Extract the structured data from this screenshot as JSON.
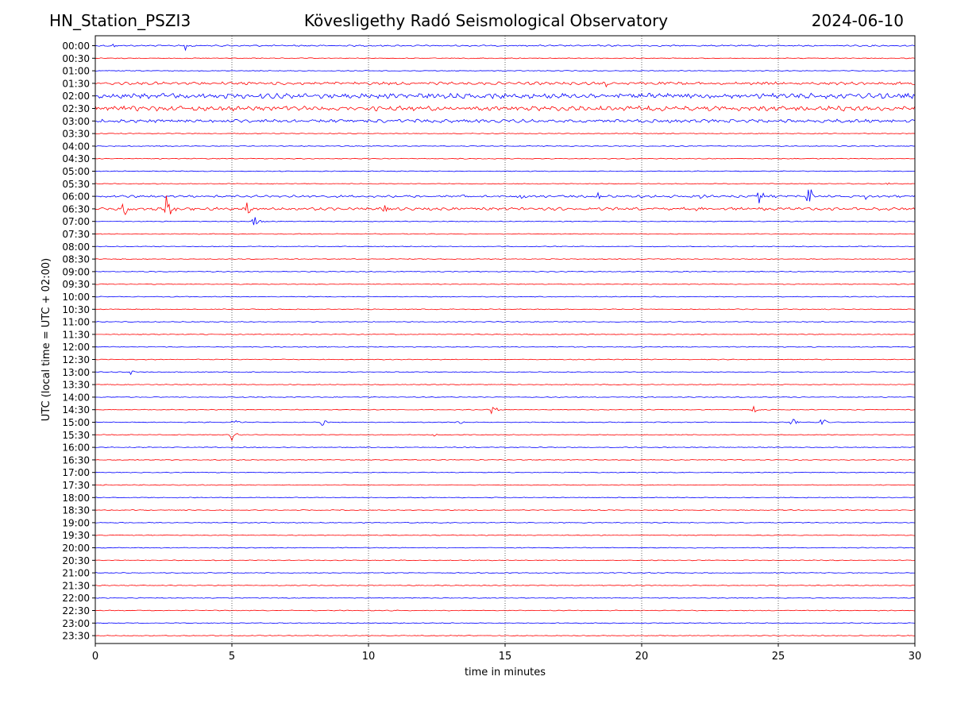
{
  "header": {
    "station": "HN_Station_PSZI3",
    "observatory": "Kövesligethy Radó Seismological Observatory",
    "date": "2024-06-10"
  },
  "chart_data": {
    "type": "line",
    "xlabel": "time in minutes",
    "ylabel": "UTC (local time = UTC + 02:00)",
    "xlim": [
      0,
      30
    ],
    "xticks": [
      0,
      5,
      10,
      15,
      20,
      25,
      30
    ],
    "rows": [
      "00:00",
      "00:30",
      "01:00",
      "01:30",
      "02:00",
      "02:30",
      "03:00",
      "03:30",
      "04:00",
      "04:30",
      "05:00",
      "05:30",
      "06:00",
      "06:30",
      "07:00",
      "07:30",
      "08:00",
      "08:30",
      "09:00",
      "09:30",
      "10:00",
      "10:30",
      "11:00",
      "11:30",
      "12:00",
      "12:30",
      "13:00",
      "13:30",
      "14:00",
      "14:30",
      "15:00",
      "15:30",
      "16:00",
      "16:30",
      "17:00",
      "17:30",
      "18:00",
      "18:30",
      "19:00",
      "19:30",
      "20:00",
      "20:30",
      "21:00",
      "21:30",
      "22:00",
      "22:30",
      "23:00",
      "23:30"
    ],
    "trace_colors": [
      "#0000ff",
      "#ff0000"
    ],
    "grid": "vertical dotted at major x ticks",
    "noise_amplitude": {
      "00:00": 0.6,
      "01:30": 1.2,
      "02:00": 2.2,
      "02:30": 2.0,
      "03:00": 1.4,
      "06:00": 1.0,
      "06:30": 1.2
    },
    "events": [
      {
        "row": "00:00",
        "t": 0.6,
        "amp": 3
      },
      {
        "row": "00:00",
        "t": 3.3,
        "amp": 6
      },
      {
        "row": "01:30",
        "t": 18.7,
        "amp": 4
      },
      {
        "row": "05:30",
        "t": 29.0,
        "amp": 2
      },
      {
        "row": "06:00",
        "t": 13.4,
        "amp": 4
      },
      {
        "row": "06:00",
        "t": 15.6,
        "amp": 5
      },
      {
        "row": "06:00",
        "t": 18.4,
        "amp": 6
      },
      {
        "row": "06:00",
        "t": 22.1,
        "amp": 5
      },
      {
        "row": "06:00",
        "t": 24.3,
        "amp": 14
      },
      {
        "row": "06:00",
        "t": 26.1,
        "amp": 16
      },
      {
        "row": "06:00",
        "t": 28.2,
        "amp": 7
      },
      {
        "row": "06:30",
        "t": 1.0,
        "amp": 14
      },
      {
        "row": "06:30",
        "t": 2.6,
        "amp": 20
      },
      {
        "row": "06:30",
        "t": 5.5,
        "amp": 10
      },
      {
        "row": "06:30",
        "t": 10.6,
        "amp": 4
      },
      {
        "row": "06:30",
        "t": 22.0,
        "amp": 4
      },
      {
        "row": "07:00",
        "t": 5.8,
        "amp": 8
      },
      {
        "row": "13:00",
        "t": 1.3,
        "amp": 3
      },
      {
        "row": "14:30",
        "t": 14.5,
        "amp": 9
      },
      {
        "row": "14:30",
        "t": 24.1,
        "amp": 4
      },
      {
        "row": "15:00",
        "t": 5.0,
        "amp": 7
      },
      {
        "row": "15:00",
        "t": 8.3,
        "amp": 5
      },
      {
        "row": "15:00",
        "t": 13.3,
        "amp": 7
      },
      {
        "row": "15:00",
        "t": 25.5,
        "amp": 6
      },
      {
        "row": "15:00",
        "t": 26.6,
        "amp": 7
      },
      {
        "row": "15:30",
        "t": 5.0,
        "amp": 7
      },
      {
        "row": "15:30",
        "t": 12.4,
        "amp": 2
      }
    ]
  }
}
